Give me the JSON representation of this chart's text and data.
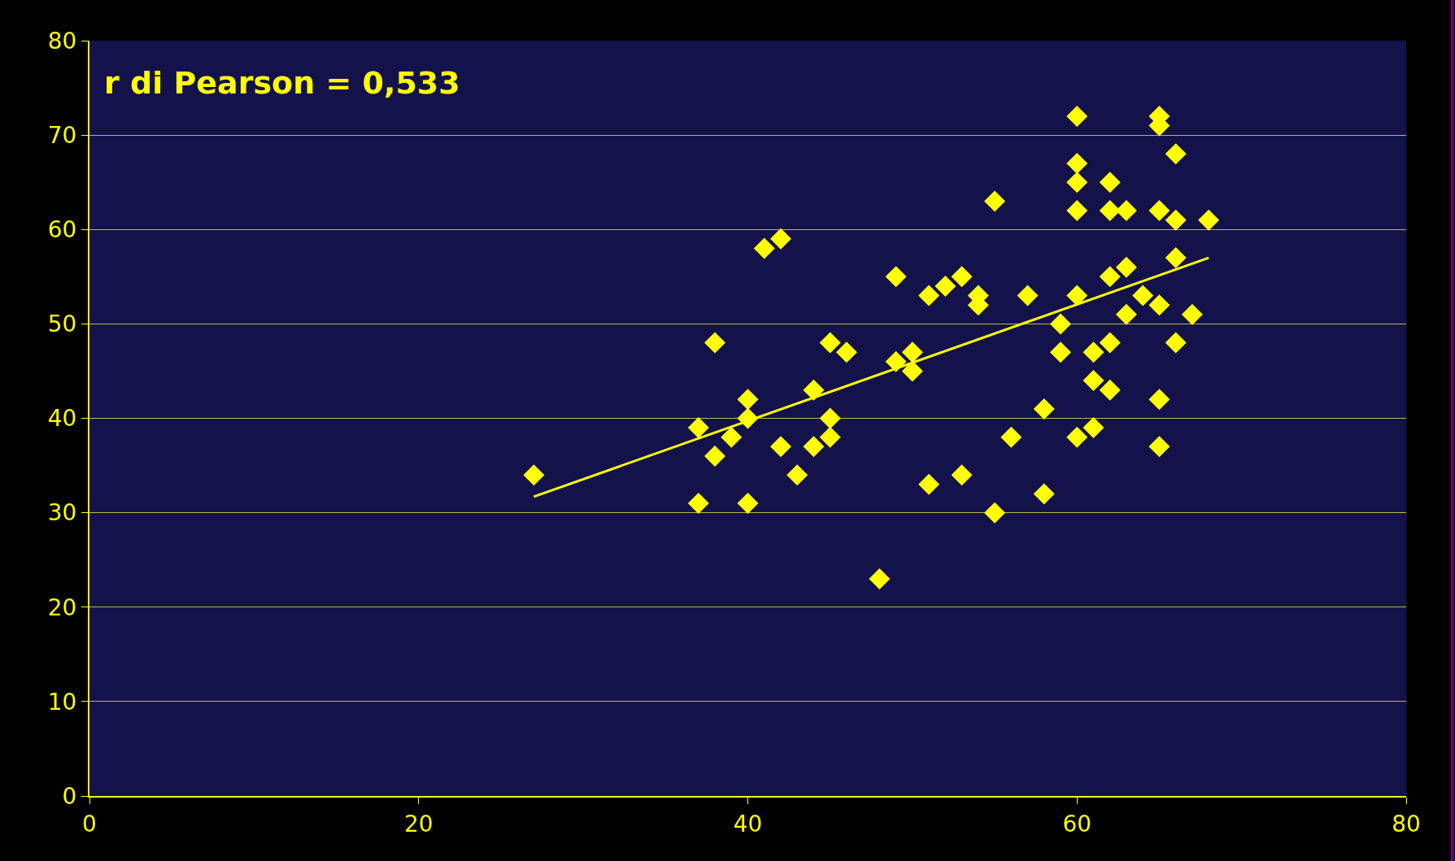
{
  "chart_data": {
    "type": "scatter",
    "annotations": [
      "r di Pearson = 0,533"
    ],
    "xlim": [
      0,
      80
    ],
    "xticks": [
      0,
      20,
      40,
      60,
      80
    ],
    "ylim": [
      0,
      80
    ],
    "yticks": [
      0,
      10,
      20,
      30,
      40,
      50,
      60,
      70,
      80
    ],
    "grid": "y",
    "marker": "diamond",
    "series": [
      {
        "color": "#ffff00",
        "x": [
          27,
          37,
          37,
          38,
          38,
          39,
          40,
          40,
          40,
          41,
          42,
          42,
          43,
          44,
          44,
          45,
          45,
          45,
          46,
          48,
          49,
          49,
          50,
          50,
          51,
          51,
          52,
          53,
          53,
          54,
          54,
          55,
          55,
          56,
          57,
          58,
          58,
          59,
          59,
          60,
          60,
          60,
          60,
          60,
          60,
          61,
          61,
          61,
          62,
          62,
          62,
          62,
          62,
          63,
          63,
          63,
          64,
          65,
          65,
          65,
          65,
          65,
          65,
          66,
          66,
          66,
          66,
          67,
          68
        ],
        "values": [
          34,
          39,
          31,
          48,
          36,
          38,
          42,
          40,
          31,
          58,
          59,
          37,
          34,
          43,
          37,
          48,
          40,
          38,
          47,
          23,
          55,
          46,
          47,
          45,
          53,
          33,
          54,
          55,
          34,
          53,
          52,
          63,
          30,
          38,
          53,
          41,
          32,
          50,
          47,
          72,
          67,
          65,
          62,
          53,
          38,
          47,
          44,
          39,
          65,
          62,
          55,
          48,
          43,
          62,
          56,
          51,
          53,
          72,
          71,
          62,
          52,
          42,
          37,
          68,
          61,
          57,
          48,
          51,
          61
        ]
      },
      {
        "type": "line",
        "color": "#ffff00",
        "marker": "none",
        "line_style": "solid",
        "x": [
          27,
          68
        ],
        "values": [
          31.7,
          57
        ]
      }
    ]
  }
}
